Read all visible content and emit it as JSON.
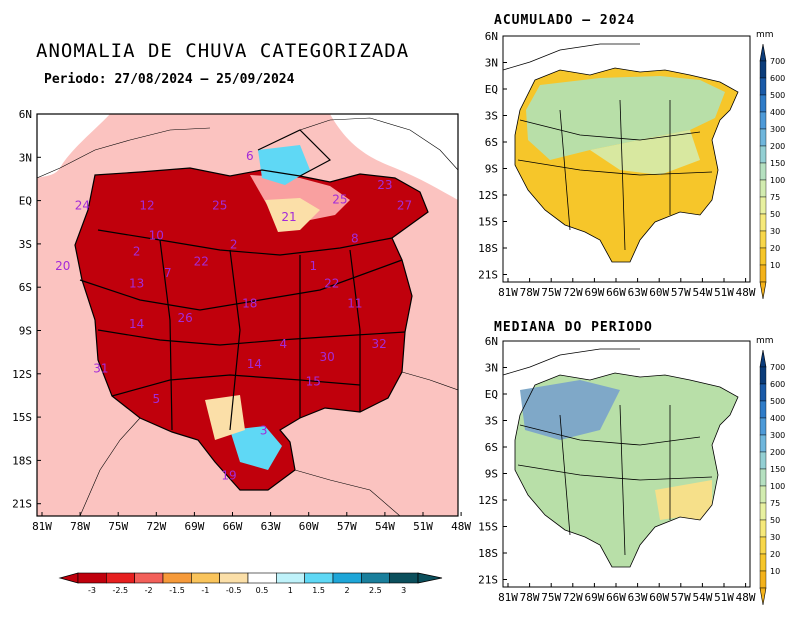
{
  "title": "ANOMALIA DE CHUVA CATEGORIZADA",
  "subtitle": "Periodo: 27/08/2024 – 25/09/2024",
  "main_map": {
    "lat_labels": [
      "6N",
      "3N",
      "EQ",
      "3S",
      "6S",
      "9S",
      "12S",
      "15S",
      "18S",
      "21S"
    ],
    "lon_labels": [
      "81W",
      "78W",
      "75W",
      "72W",
      "69W",
      "66W",
      "63W",
      "60W",
      "57W",
      "54W",
      "51W",
      "48W"
    ],
    "basin_labels": [
      {
        "n": "6",
        "lon": -63.0,
        "lat": 2.8
      },
      {
        "n": "23",
        "lon": -51.3,
        "lat": 0.8
      },
      {
        "n": "25",
        "lon": -55.2,
        "lat": -0.2
      },
      {
        "n": "24",
        "lon": -77.5,
        "lat": -0.6
      },
      {
        "n": "12",
        "lon": -71.9,
        "lat": -0.6
      },
      {
        "n": "25",
        "lon": -65.6,
        "lat": -0.6
      },
      {
        "n": "21",
        "lon": -59.6,
        "lat": -1.4
      },
      {
        "n": "27",
        "lon": -49.6,
        "lat": -0.6
      },
      {
        "n": "10",
        "lon": -71.1,
        "lat": -2.7
      },
      {
        "n": "8",
        "lon": -53.9,
        "lat": -2.9
      },
      {
        "n": "2",
        "lon": -72.8,
        "lat": -3.8
      },
      {
        "n": "2",
        "lon": -64.4,
        "lat": -3.3
      },
      {
        "n": "22",
        "lon": -67.2,
        "lat": -4.5
      },
      {
        "n": "20",
        "lon": -79.2,
        "lat": -4.8
      },
      {
        "n": "7",
        "lon": -70.1,
        "lat": -5.3
      },
      {
        "n": "1",
        "lon": -57.5,
        "lat": -4.8
      },
      {
        "n": "13",
        "lon": -72.8,
        "lat": -6.0
      },
      {
        "n": "22",
        "lon": -55.9,
        "lat": -6.0
      },
      {
        "n": "18",
        "lon": -63.0,
        "lat": -7.4
      },
      {
        "n": "11",
        "lon": -53.9,
        "lat": -7.4
      },
      {
        "n": "14",
        "lon": -72.8,
        "lat": -8.8
      },
      {
        "n": "26",
        "lon": -68.6,
        "lat": -8.4
      },
      {
        "n": "4",
        "lon": -60.1,
        "lat": -10.2
      },
      {
        "n": "32",
        "lon": -51.8,
        "lat": -10.2
      },
      {
        "n": "30",
        "lon": -56.3,
        "lat": -11.1
      },
      {
        "n": "14",
        "lon": -62.6,
        "lat": -11.6
      },
      {
        "n": "31",
        "lon": -75.9,
        "lat": -11.9
      },
      {
        "n": "15",
        "lon": -57.5,
        "lat": -12.8
      },
      {
        "n": "5",
        "lon": -71.1,
        "lat": -14.0
      },
      {
        "n": "3",
        "lon": -61.8,
        "lat": -16.2
      },
      {
        "n": "19",
        "lon": -64.8,
        "lat": -19.3
      }
    ]
  },
  "colorbar_main": {
    "labels": [
      "-3",
      "-2.5",
      "-2",
      "-1.5",
      "-1",
      "-0.5",
      "0.5",
      "1",
      "1.5",
      "2",
      "2.5",
      "3"
    ],
    "colors": [
      "#c0000c",
      "#e61f1f",
      "#f2605a",
      "#f69a3a",
      "#f9c45c",
      "#fbdfa8",
      "#ffffff",
      "#bff2fa",
      "#5fd8f5",
      "#1ea6d8",
      "#1a7f9c",
      "#0b4f5c"
    ]
  },
  "panel_top": {
    "title": "ACUMULADO – 2024",
    "lat_labels": [
      "6N",
      "3N",
      "EQ",
      "3S",
      "6S",
      "9S",
      "12S",
      "15S",
      "18S",
      "21S"
    ],
    "lon_labels": [
      "81W",
      "78W",
      "75W",
      "72W",
      "69W",
      "66W",
      "63W",
      "60W",
      "57W",
      "54W",
      "51W",
      "48W"
    ],
    "unit": "mm",
    "cb_labels": [
      "700",
      "600",
      "500",
      "400",
      "300",
      "200",
      "150",
      "100",
      "75",
      "50",
      "30",
      "20",
      "10"
    ]
  },
  "panel_bottom": {
    "title": "MEDIANA DO PERIODO",
    "lat_labels": [
      "6N",
      "3N",
      "EQ",
      "3S",
      "6S",
      "9S",
      "12S",
      "15S",
      "18S",
      "21S"
    ],
    "lon_labels": [
      "81W",
      "78W",
      "75W",
      "72W",
      "69W",
      "66W",
      "63W",
      "60W",
      "57W",
      "54W",
      "51W",
      "48W"
    ],
    "unit": "mm",
    "cb_labels": [
      "700",
      "600",
      "500",
      "400",
      "300",
      "200",
      "150",
      "100",
      "75",
      "50",
      "30",
      "20",
      "10"
    ]
  },
  "colors": {
    "land_main": "#fbc3c0",
    "anomaly_dark": "#c0000c",
    "anomaly_mid": "#e61f1f",
    "dry_yellow": "#f6c62a",
    "wet_green": "#b8dfa8",
    "wet_blue": "#7fa8c8"
  }
}
